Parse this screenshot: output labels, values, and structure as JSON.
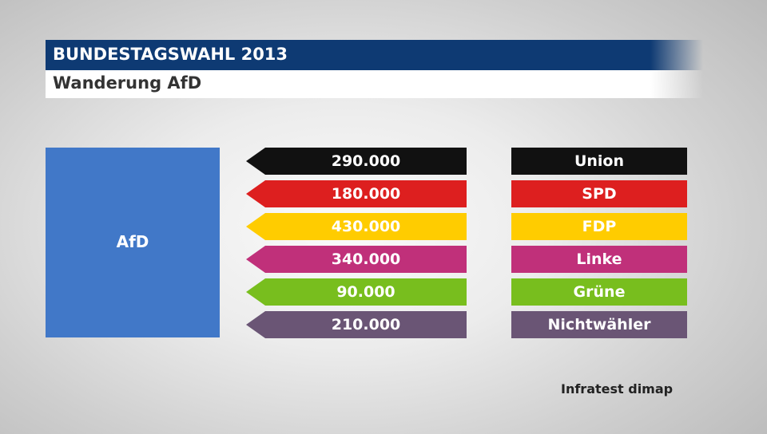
{
  "header": {
    "title": "BUNDESTAGSWAHL 2013",
    "subtitle": "Wanderung AfD"
  },
  "chart_data": {
    "type": "table",
    "target_party": "AfD",
    "target_color": "#4178c8",
    "rows": [
      {
        "party": "Union",
        "value_label": "290.000",
        "value": 290000,
        "color": "#111111"
      },
      {
        "party": "SPD",
        "value_label": "180.000",
        "value": 180000,
        "color": "#dd1f1f"
      },
      {
        "party": "FDP",
        "value_label": "430.000",
        "value": 430000,
        "color": "#ffcc00"
      },
      {
        "party": "Linke",
        "value_label": "340.000",
        "value": 340000,
        "color": "#c0307a"
      },
      {
        "party": "Grüne",
        "value_label": "90.000",
        "value": 90000,
        "color": "#78be1e"
      },
      {
        "party": "Nichtwähler",
        "value_label": "210.000",
        "value": 210000,
        "color": "#6a5575"
      }
    ]
  },
  "source": "Infratest dimap"
}
